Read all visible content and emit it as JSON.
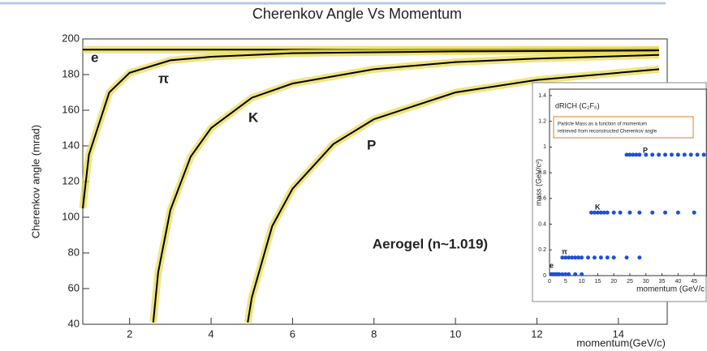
{
  "chart_data": [
    {
      "type": "line",
      "title": "Cherenkov Angle Vs Momentum",
      "x_label": "momentum(GeV/c)",
      "y_label": "Cherenkov angle (mrad)",
      "annotation": "Aerogel (n~1.019)",
      "xlim": [
        0.85,
        15.2
      ],
      "xticks": [
        2,
        4,
        6,
        8,
        10,
        12,
        14
      ],
      "ylim": [
        40,
        200
      ],
      "yticks": [
        40,
        60,
        80,
        100,
        120,
        140,
        160,
        180,
        200
      ],
      "color": "#000000",
      "band_color": "#e8d84a",
      "series": [
        {
          "name": "e",
          "x": [
            0.85,
            15
          ],
          "values": [
            194,
            194
          ]
        },
        {
          "name": "π",
          "x": [
            0.85,
            1,
            1.5,
            2,
            3,
            4,
            6,
            10,
            15
          ],
          "values": [
            105,
            135,
            170,
            181,
            188,
            190,
            192,
            193,
            193.5
          ]
        },
        {
          "name": "K",
          "x": [
            2.58,
            2.7,
            3,
            3.5,
            4,
            5,
            6,
            8,
            10,
            12,
            15
          ],
          "values": [
            41,
            69,
            104,
            134,
            150,
            167,
            175,
            183,
            187,
            189,
            191
          ]
        },
        {
          "name": "P",
          "x": [
            4.9,
            5,
            5.5,
            6,
            7,
            8,
            10,
            12,
            15
          ],
          "values": [
            41,
            55,
            95,
            116,
            141,
            155,
            170,
            177,
            183
          ]
        }
      ]
    },
    {
      "type": "scatter",
      "title": "dRICH (C₂F₆)",
      "annotation_lines": [
        "Particle Mass as a function of momentum",
        "retrieved from reconstructed Cherenkov angle"
      ],
      "x_label": "momentum (GeV/c",
      "y_label": "mass (GeV/c²)",
      "xlim": [
        0,
        49
      ],
      "xticks": [
        0,
        5,
        10,
        15,
        20,
        25,
        30,
        35,
        40,
        45
      ],
      "ylim": [
        0,
        1.45
      ],
      "yticks": [
        0,
        0.2,
        0.4,
        0.6,
        0.8,
        1,
        1.2,
        1.4
      ],
      "color": "#1f4fd8",
      "series": [
        {
          "name": "e",
          "x": [
            0.5,
            1,
            1.5,
            2,
            2.5,
            3,
            4,
            5,
            6,
            8,
            10
          ],
          "values": [
            0.01,
            0.01,
            0.01,
            0.01,
            0.01,
            0.01,
            0.01,
            0.01,
            0.01,
            0.01,
            0.01
          ]
        },
        {
          "name": "π",
          "x": [
            4,
            5,
            6,
            7,
            8,
            9,
            10,
            12,
            14,
            16,
            18,
            20,
            24,
            28
          ],
          "values": [
            0.14,
            0.14,
            0.14,
            0.14,
            0.14,
            0.14,
            0.14,
            0.14,
            0.14,
            0.14,
            0.14,
            0.14,
            0.14,
            0.14
          ]
        },
        {
          "name": "K",
          "x": [
            13,
            14,
            15,
            16,
            17,
            18,
            20,
            22,
            25,
            28,
            32,
            36,
            40,
            45
          ],
          "values": [
            0.49,
            0.49,
            0.49,
            0.49,
            0.49,
            0.49,
            0.49,
            0.49,
            0.49,
            0.49,
            0.49,
            0.49,
            0.49,
            0.49
          ]
        },
        {
          "name": "P",
          "x": [
            24,
            25,
            26,
            27,
            28,
            30,
            32,
            34,
            36,
            38,
            40,
            42,
            44,
            46,
            48
          ],
          "values": [
            0.94,
            0.94,
            0.94,
            0.94,
            0.94,
            0.94,
            0.94,
            0.94,
            0.94,
            0.94,
            0.94,
            0.94,
            0.94,
            0.94,
            0.94
          ]
        }
      ]
    }
  ]
}
